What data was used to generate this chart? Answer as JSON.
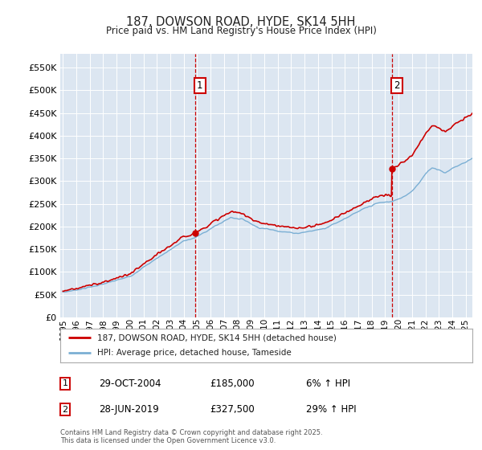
{
  "title": "187, DOWSON ROAD, HYDE, SK14 5HH",
  "subtitle": "Price paid vs. HM Land Registry's House Price Index (HPI)",
  "ytick_values": [
    0,
    50000,
    100000,
    150000,
    200000,
    250000,
    300000,
    350000,
    400000,
    450000,
    500000,
    550000
  ],
  "ylim": [
    0,
    580000
  ],
  "xlim_start": 1994.8,
  "xlim_end": 2025.5,
  "xticks": [
    1995,
    1996,
    1997,
    1998,
    1999,
    2000,
    2001,
    2002,
    2003,
    2004,
    2005,
    2006,
    2007,
    2008,
    2009,
    2010,
    2011,
    2012,
    2013,
    2014,
    2015,
    2016,
    2017,
    2018,
    2019,
    2020,
    2021,
    2022,
    2023,
    2024,
    2025
  ],
  "sale1_x": 2004.83,
  "sale1_y": 185000,
  "sale2_x": 2019.49,
  "sale2_y": 327500,
  "line1_color": "#cc0000",
  "line2_color": "#7bafd4",
  "bg_color": "#dce6f1",
  "grid_color": "#ffffff",
  "vline_color": "#cc0000",
  "sale1_label": "1",
  "sale2_label": "2",
  "sale1_date": "29-OCT-2004",
  "sale1_price": "£185,000",
  "sale1_hpi": "6% ↑ HPI",
  "sale2_date": "28-JUN-2019",
  "sale2_price": "£327,500",
  "sale2_hpi": "29% ↑ HPI",
  "legend_label1": "187, DOWSON ROAD, HYDE, SK14 5HH (detached house)",
  "legend_label2": "HPI: Average price, detached house, Tameside",
  "footer": "Contains HM Land Registry data © Crown copyright and database right 2025.\nThis data is licensed under the Open Government Licence v3.0."
}
